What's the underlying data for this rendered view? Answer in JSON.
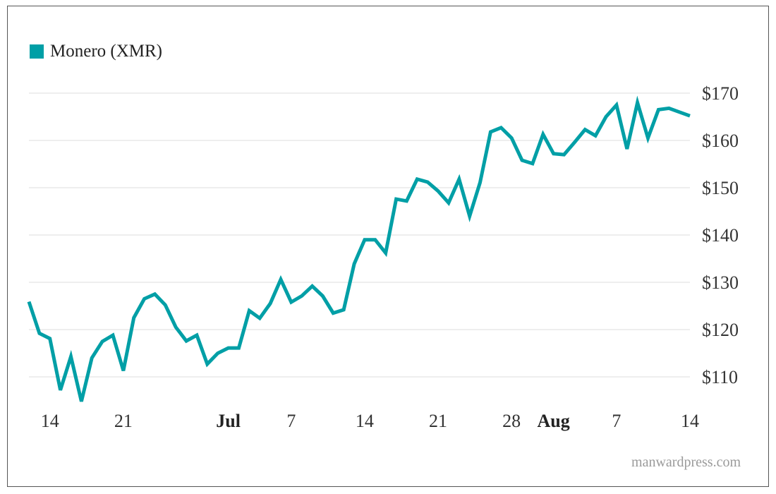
{
  "colors": {
    "series": "#009fa6",
    "grid": "#dcdcdc",
    "frame": "#555555",
    "text": "#333333",
    "source": "#9a9a9a"
  },
  "source_text": "manwardpress.com",
  "chart_data": {
    "type": "line",
    "title": "",
    "xlabel": "",
    "ylabel": "",
    "ylim": [
      104,
      172
    ],
    "grid": "horizontal",
    "legend": "top-left",
    "yticks": [
      {
        "value": 110,
        "label": "$110"
      },
      {
        "value": 120,
        "label": "$120"
      },
      {
        "value": 130,
        "label": "$130"
      },
      {
        "value": 140,
        "label": "$140"
      },
      {
        "value": 150,
        "label": "$150"
      },
      {
        "value": 160,
        "label": "$160"
      },
      {
        "value": 170,
        "label": "$170"
      }
    ],
    "xticks": [
      {
        "date": "2018-06-14",
        "label": "14",
        "bold": false
      },
      {
        "date": "2018-06-21",
        "label": "21",
        "bold": false
      },
      {
        "date": "2018-07-01",
        "label": "Jul",
        "bold": true
      },
      {
        "date": "2018-07-07",
        "label": "7",
        "bold": false
      },
      {
        "date": "2018-07-14",
        "label": "14",
        "bold": false
      },
      {
        "date": "2018-07-21",
        "label": "21",
        "bold": false
      },
      {
        "date": "2018-07-28",
        "label": "28",
        "bold": false
      },
      {
        "date": "2018-08-01",
        "label": "Aug",
        "bold": true
      },
      {
        "date": "2018-08-07",
        "label": "7",
        "bold": false
      },
      {
        "date": "2018-08-14",
        "label": "14",
        "bold": false
      }
    ],
    "xlim": [
      "2018-06-12",
      "2018-08-14"
    ],
    "series": [
      {
        "name": "Monero (XMR)",
        "color": "#009fa6",
        "x": [
          "2018-06-12",
          "2018-06-13",
          "2018-06-14",
          "2018-06-15",
          "2018-06-16",
          "2018-06-17",
          "2018-06-18",
          "2018-06-19",
          "2018-06-20",
          "2018-06-21",
          "2018-06-22",
          "2018-06-23",
          "2018-06-24",
          "2018-06-25",
          "2018-06-26",
          "2018-06-27",
          "2018-06-28",
          "2018-06-29",
          "2018-06-30",
          "2018-07-01",
          "2018-07-02",
          "2018-07-03",
          "2018-07-04",
          "2018-07-05",
          "2018-07-06",
          "2018-07-07",
          "2018-07-08",
          "2018-07-09",
          "2018-07-10",
          "2018-07-11",
          "2018-07-12",
          "2018-07-13",
          "2018-07-14",
          "2018-07-15",
          "2018-07-16",
          "2018-07-17",
          "2018-07-18",
          "2018-07-19",
          "2018-07-20",
          "2018-07-21",
          "2018-07-22",
          "2018-07-23",
          "2018-07-24",
          "2018-07-25",
          "2018-07-26",
          "2018-07-27",
          "2018-07-28",
          "2018-07-29",
          "2018-07-30",
          "2018-07-31",
          "2018-08-01",
          "2018-08-02",
          "2018-08-03",
          "2018-08-04",
          "2018-08-05",
          "2018-08-06",
          "2018-08-07",
          "2018-08-08",
          "2018-08-09",
          "2018-08-10",
          "2018-08-11",
          "2018-08-12",
          "2018-08-13",
          "2018-08-14"
        ],
        "values": [
          125.9,
          119.2,
          118.1,
          107.2,
          114.3,
          104.8,
          114.0,
          117.5,
          118.8,
          111.3,
          122.5,
          126.5,
          127.5,
          125.2,
          120.5,
          117.6,
          118.8,
          112.7,
          115.0,
          116.1,
          116.1,
          124.0,
          122.4,
          125.5,
          130.6,
          125.8,
          127.1,
          129.2,
          127.1,
          123.5,
          124.2,
          133.9,
          139.0,
          139.0,
          136.2,
          147.6,
          147.2,
          151.8,
          151.2,
          149.3,
          146.8,
          151.8,
          144.0,
          151.1,
          161.8,
          162.7,
          160.5,
          155.8,
          155.1,
          161.3,
          157.2,
          157.0,
          159.6,
          162.3,
          161.0,
          165.0,
          167.5,
          158.2,
          168.0,
          160.5,
          166.5,
          166.8,
          166.0,
          165.2
        ]
      }
    ]
  }
}
